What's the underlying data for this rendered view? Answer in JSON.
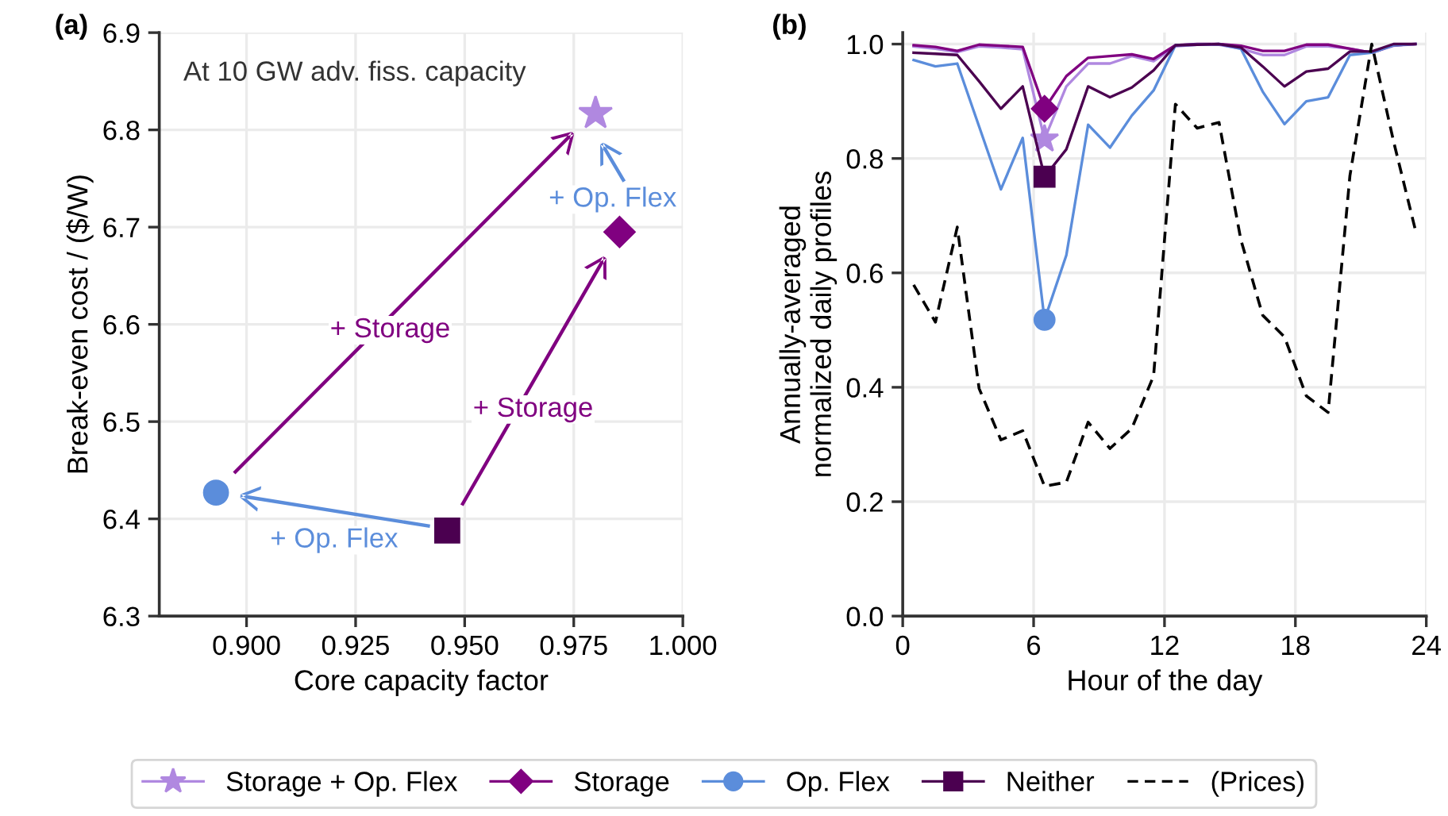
{
  "chart_data": [
    {
      "type": "scatter",
      "title": "(a)",
      "xlabel": "Core capacity factor",
      "ylabel": "Break-even cost / ($/W)",
      "xlim": [
        0.88,
        1.0
      ],
      "xticks": [
        {
          "value": 0.9,
          "label": "0.900"
        },
        {
          "value": 0.925,
          "label": "0.925"
        },
        {
          "value": 0.95,
          "label": "0.950"
        },
        {
          "value": 0.975,
          "label": "0.975"
        },
        {
          "value": 1.0,
          "label": "1.000"
        }
      ],
      "ylim": [
        6.3,
        6.9
      ],
      "yticks": [
        {
          "value": 6.3,
          "label": "6.3"
        },
        {
          "value": 6.4,
          "label": "6.4"
        },
        {
          "value": 6.5,
          "label": "6.5"
        },
        {
          "value": 6.6,
          "label": "6.6"
        },
        {
          "value": 6.7,
          "label": "6.7"
        },
        {
          "value": 6.8,
          "label": "6.8"
        },
        {
          "value": 6.9,
          "label": "6.9"
        }
      ],
      "grid": true,
      "series": [
        {
          "color": "#b088e0",
          "marker": "star",
          "x": [
            0.98
          ],
          "values": [
            6.817
          ]
        },
        {
          "color": "#800080",
          "marker": "diamond",
          "x": [
            0.9855
          ],
          "values": [
            6.695
          ]
        },
        {
          "color": "#5b8ddb",
          "marker": "circle",
          "x": [
            0.893
          ],
          "values": [
            6.427
          ]
        },
        {
          "color": "#4b0050",
          "marker": "square",
          "x": [
            0.946
          ],
          "values": [
            6.388
          ]
        }
      ],
      "annotations": [
        "At 10 GW adv. fiss. capacity",
        "+ Storage",
        "+ Storage",
        "+ Op. Flex",
        "+ Op. Flex"
      ]
    },
    {
      "type": "line",
      "title": "(b)",
      "xlabel": "Hour of the day",
      "ylabel": "Annually-averaged\nnormalized daily profiles",
      "x": [
        0.5,
        1.5,
        2.5,
        3.5,
        4.5,
        5.5,
        6.5,
        7.5,
        8.5,
        9.5,
        10.5,
        11.5,
        12.5,
        13.5,
        14.5,
        15.5,
        16.5,
        17.5,
        18.5,
        19.5,
        20.5,
        21.5,
        22.5,
        23.5
      ],
      "xlim": [
        0,
        24
      ],
      "xticks": [
        0,
        6,
        12,
        18,
        24
      ],
      "ylim": [
        0,
        1.02
      ],
      "yticks": [
        {
          "value": 0,
          "label": "0.0"
        },
        {
          "value": 0.2,
          "label": "0.2"
        },
        {
          "value": 0.4,
          "label": "0.4"
        },
        {
          "value": 0.6,
          "label": "0.6"
        },
        {
          "value": 0.8,
          "label": "0.8"
        },
        {
          "value": 1.0,
          "label": "1.0"
        }
      ],
      "grid": true,
      "legend": "bottom",
      "series": [
        {
          "name": "Storage + Op. Flex",
          "color": "#b088e0",
          "line_style": "solid",
          "values": [
            0.996,
            0.992,
            0.986,
            0.996,
            0.994,
            0.991,
            0.834,
            0.926,
            0.966,
            0.966,
            0.979,
            0.97,
            0.996,
            0.999,
            0.999,
            0.992,
            0.981,
            0.981,
            0.996,
            0.996,
            0.992,
            0.985,
            0.997,
            1.0
          ]
        },
        {
          "name": "Storage",
          "color": "#800080",
          "line_style": "solid",
          "values": [
            0.998,
            0.995,
            0.988,
            0.999,
            0.997,
            0.995,
            0.887,
            0.944,
            0.976,
            0.979,
            0.982,
            0.974,
            0.998,
            1.0,
            1.0,
            0.997,
            0.988,
            0.988,
            0.999,
            0.999,
            0.992,
            0.985,
            0.998,
            1.0
          ]
        },
        {
          "name": "Op. Flex",
          "color": "#5b8ddb",
          "line_style": "solid",
          "values": [
            0.972,
            0.961,
            0.966,
            0.856,
            0.746,
            0.836,
            0.518,
            0.631,
            0.859,
            0.819,
            0.875,
            0.919,
            0.998,
            0.999,
            1.0,
            0.992,
            0.917,
            0.86,
            0.9,
            0.907,
            0.981,
            0.985,
            0.998,
            1.0
          ]
        },
        {
          "name": "Neither",
          "color": "#4b0050",
          "line_style": "solid",
          "values": [
            0.985,
            0.983,
            0.981,
            0.935,
            0.887,
            0.926,
            0.768,
            0.816,
            0.926,
            0.907,
            0.924,
            0.954,
            0.998,
            0.999,
            1.0,
            0.994,
            0.961,
            0.926,
            0.952,
            0.957,
            0.987,
            0.987,
            1.0,
            1.0
          ]
        },
        {
          "name": "(Prices)",
          "color": "#000000",
          "line_style": "dashed",
          "values": [
            0.579,
            0.514,
            0.68,
            0.398,
            0.308,
            0.324,
            0.227,
            0.234,
            0.339,
            0.293,
            0.328,
            0.42,
            0.895,
            0.853,
            0.863,
            0.658,
            0.526,
            0.488,
            0.385,
            0.356,
            0.77,
            1.0,
            0.83,
            0.675
          ]
        }
      ]
    }
  ]
}
